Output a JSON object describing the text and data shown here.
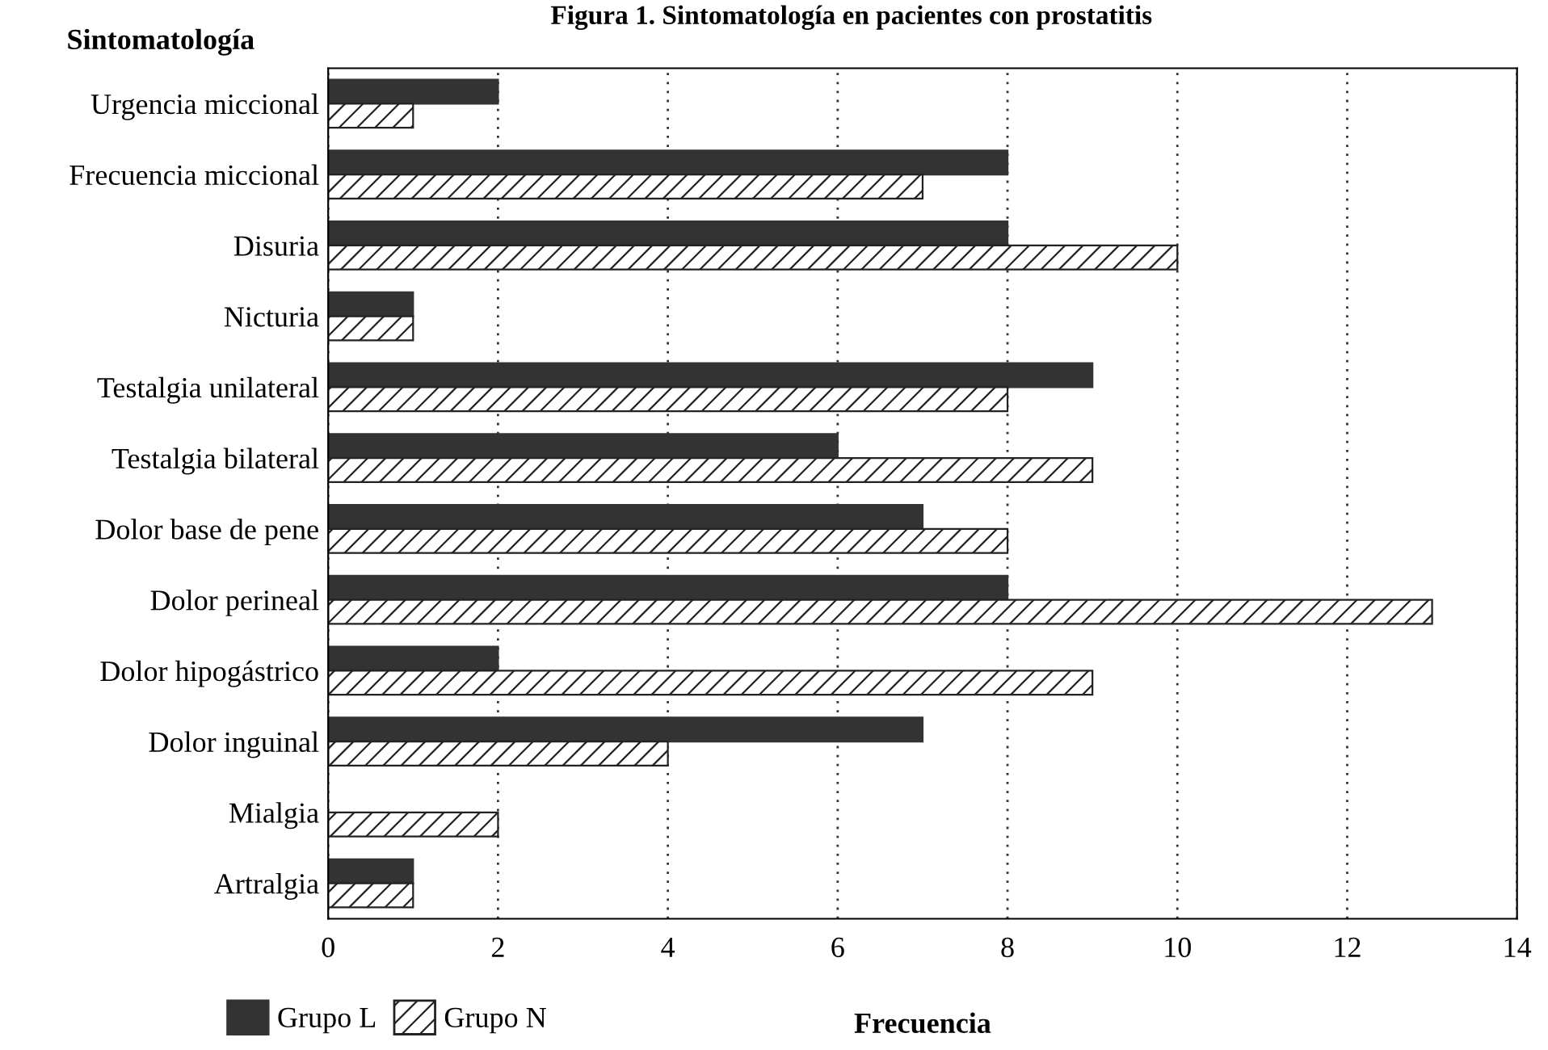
{
  "chart_data": {
    "type": "bar",
    "orientation": "horizontal",
    "title": "Figura 1. Sintomatología en pacientes con prostatitis",
    "xlabel": "Frecuencia",
    "ylabel": "Sintomatología",
    "categories": [
      "Urgencia miccional",
      "Frecuencia miccional",
      "Disuria",
      "Nicturia",
      "Testalgia unilateral",
      "Testalgia bilateral",
      "Dolor base de pene",
      "Dolor perineal",
      "Dolor hipogástrico",
      "Dolor inguinal",
      "Mialgia",
      "Artralgia"
    ],
    "series": [
      {
        "name": "Grupo L",
        "color": "#333333",
        "values": [
          2,
          8,
          8,
          1,
          9,
          6,
          7,
          8,
          2,
          7,
          null,
          1
        ]
      },
      {
        "name": "Grupo N",
        "color": "#222222",
        "values": [
          1,
          7,
          10,
          1,
          8,
          9,
          8,
          13,
          9,
          4,
          2,
          1
        ]
      }
    ],
    "xlim": [
      0,
      14
    ],
    "xticks": [
      0,
      2,
      4,
      6,
      8,
      10,
      12,
      14
    ],
    "grid": "x",
    "legend": "bottom left"
  }
}
